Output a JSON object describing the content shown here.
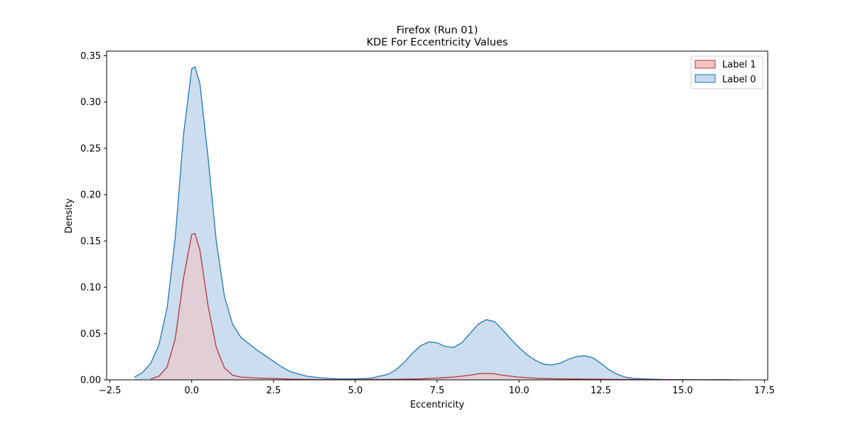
{
  "chart_data": {
    "type": "area",
    "title": "Firefox (Run 01)",
    "subtitle": "KDE For Eccentricity Values",
    "xlabel": "Eccentricity",
    "ylabel": "Density",
    "xlim": [
      -2.6,
      17.6
    ],
    "ylim": [
      0,
      0.355
    ],
    "xticks": [
      -2.5,
      0.0,
      2.5,
      5.0,
      7.5,
      10.0,
      12.5,
      15.0,
      17.5
    ],
    "xtick_labels": [
      "−2.5",
      "0.0",
      "2.5",
      "5.0",
      "7.5",
      "10.0",
      "12.5",
      "15.0",
      "17.5"
    ],
    "yticks": [
      0.0,
      0.05,
      0.1,
      0.15,
      0.2,
      0.25,
      0.3,
      0.35
    ],
    "ytick_labels": [
      "0.00",
      "0.05",
      "0.10",
      "0.15",
      "0.20",
      "0.25",
      "0.30",
      "0.35"
    ],
    "grid": false,
    "legend_position": "top-right",
    "series": [
      {
        "name": "Label 0",
        "line_color": "#1f77b4",
        "fill_color": "#c5d9ec",
        "x": [
          -1.75,
          -1.5,
          -1.25,
          -1.0,
          -0.75,
          -0.5,
          -0.25,
          0.0,
          0.1,
          0.25,
          0.5,
          0.75,
          1.0,
          1.25,
          1.5,
          1.75,
          2.0,
          2.25,
          2.5,
          2.75,
          3.0,
          3.5,
          4.0,
          4.5,
          5.0,
          5.5,
          6.0,
          6.25,
          6.5,
          6.75,
          7.0,
          7.25,
          7.5,
          7.75,
          8.0,
          8.25,
          8.5,
          8.75,
          9.0,
          9.25,
          9.5,
          9.75,
          10.0,
          10.25,
          10.5,
          10.75,
          11.0,
          11.25,
          11.5,
          11.75,
          12.0,
          12.25,
          12.5,
          12.75,
          13.0,
          13.25,
          13.5,
          14.0,
          14.5,
          15.0,
          15.5,
          16.0,
          16.5,
          16.75
        ],
        "y": [
          0.003,
          0.008,
          0.018,
          0.038,
          0.078,
          0.155,
          0.265,
          0.336,
          0.338,
          0.32,
          0.24,
          0.15,
          0.09,
          0.06,
          0.046,
          0.039,
          0.032,
          0.026,
          0.02,
          0.014,
          0.009,
          0.004,
          0.002,
          0.001,
          0.001,
          0.002,
          0.006,
          0.011,
          0.019,
          0.029,
          0.037,
          0.041,
          0.04,
          0.036,
          0.035,
          0.04,
          0.05,
          0.06,
          0.065,
          0.063,
          0.054,
          0.044,
          0.035,
          0.027,
          0.021,
          0.017,
          0.016,
          0.018,
          0.022,
          0.025,
          0.026,
          0.024,
          0.018,
          0.011,
          0.006,
          0.003,
          0.0015,
          0.0008,
          0.0004,
          0.0002,
          0.0001,
          5e-05,
          2e-05,
          1e-05
        ]
      },
      {
        "name": "Label 1",
        "line_color": "#b2353f",
        "fill_color": "#f6c1c1",
        "x": [
          -1.25,
          -1.0,
          -0.75,
          -0.5,
          -0.25,
          0.0,
          0.1,
          0.25,
          0.5,
          0.75,
          1.0,
          1.25,
          1.5,
          1.75,
          2.0,
          2.5,
          3.0,
          4.0,
          5.0,
          6.0,
          7.0,
          7.5,
          8.0,
          8.5,
          8.75,
          9.0,
          9.25,
          9.5,
          10.0,
          10.5,
          11.0,
          12.0,
          13.0,
          14.0,
          15.0,
          16.0,
          16.5
        ],
        "y": [
          0.001,
          0.004,
          0.014,
          0.045,
          0.11,
          0.157,
          0.158,
          0.14,
          0.08,
          0.035,
          0.013,
          0.005,
          0.003,
          0.0025,
          0.002,
          0.0015,
          0.0008,
          0.0003,
          0.0003,
          0.0005,
          0.001,
          0.002,
          0.003,
          0.005,
          0.0065,
          0.007,
          0.0065,
          0.005,
          0.003,
          0.0018,
          0.0012,
          0.0008,
          0.0005,
          0.0003,
          0.0002,
          0.0001,
          5e-05
        ]
      }
    ],
    "legend": [
      {
        "label": "Label 1",
        "line_color": "#b2353f",
        "fill_color": "#f6c1c1"
      },
      {
        "label": "Label 0",
        "line_color": "#1f77b4",
        "fill_color": "#c5d9ec"
      }
    ]
  }
}
